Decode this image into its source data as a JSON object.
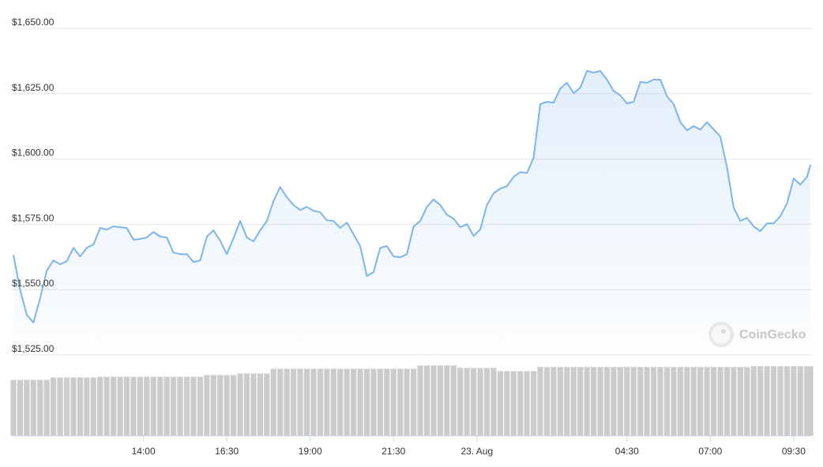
{
  "chart_data": {
    "type": "line",
    "watermark": "CoinGecko",
    "x": [
      10.1,
      10.3,
      10.5,
      10.7,
      10.9,
      11.1,
      11.3,
      11.5,
      11.7,
      11.9,
      12.1,
      12.3,
      12.5,
      12.7,
      12.9,
      13.1,
      13.3,
      13.5,
      13.7,
      13.9,
      14.1,
      14.3,
      14.5,
      14.7,
      14.9,
      15.1,
      15.3,
      15.5,
      15.7,
      15.9,
      16.1,
      16.3,
      16.5,
      16.7,
      16.9,
      17.1,
      17.3,
      17.5,
      17.7,
      17.9,
      18.1,
      18.3,
      18.5,
      18.7,
      18.9,
      19.1,
      19.3,
      19.5,
      19.7,
      19.9,
      20.1,
      20.3,
      20.5,
      20.7,
      20.9,
      21.1,
      21.3,
      21.5,
      21.7,
      21.9,
      22.1,
      22.3,
      22.5,
      22.7,
      22.9,
      23.1,
      23.3,
      23.5,
      23.7,
      23.9,
      24.1,
      24.3,
      24.5,
      24.7,
      24.9,
      25.1,
      25.3,
      25.5,
      25.7,
      25.9,
      26.1,
      26.3,
      26.5,
      26.7,
      26.9,
      27.1,
      27.3,
      27.5,
      27.7,
      27.9,
      28.1,
      28.3,
      28.5,
      28.7,
      28.9,
      29.1,
      29.3,
      29.5,
      29.7,
      29.9,
      30.1,
      30.3,
      30.5,
      30.7,
      30.9,
      31.1,
      31.3,
      31.5,
      31.7,
      31.9,
      32.1,
      32.3,
      32.5,
      32.7,
      32.9,
      33.1,
      33.3,
      33.5,
      33.7,
      33.9,
      34.0
    ],
    "series": [
      {
        "color": "#7cb5ec",
        "values": [
          1563.3,
          1550.0,
          1540.4,
          1537.4,
          1546.7,
          1557.3,
          1561.2,
          1559.7,
          1560.9,
          1566.0,
          1562.7,
          1566.0,
          1567.3,
          1573.6,
          1573.0,
          1574.2,
          1573.9,
          1573.6,
          1569.1,
          1569.4,
          1570.0,
          1572.1,
          1570.3,
          1570.0,
          1564.2,
          1563.6,
          1563.6,
          1560.6,
          1561.2,
          1570.3,
          1572.7,
          1568.8,
          1563.6,
          1569.7,
          1576.3,
          1570.0,
          1568.5,
          1572.7,
          1576.3,
          1583.9,
          1589.3,
          1585.4,
          1582.4,
          1580.5,
          1581.7,
          1580.2,
          1579.6,
          1576.6,
          1576.3,
          1573.6,
          1575.7,
          1571.2,
          1566.6,
          1555.2,
          1556.7,
          1566.0,
          1566.7,
          1562.7,
          1562.4,
          1563.6,
          1574.2,
          1576.3,
          1581.7,
          1584.5,
          1582.4,
          1578.7,
          1577.2,
          1573.9,
          1575.1,
          1570.6,
          1573.0,
          1582.4,
          1586.9,
          1588.7,
          1589.6,
          1593.2,
          1595.0,
          1594.7,
          1600.5,
          1621.0,
          1621.9,
          1621.6,
          1627.0,
          1629.2,
          1625.2,
          1627.3,
          1633.7,
          1633.1,
          1633.7,
          1630.4,
          1626.1,
          1624.3,
          1621.3,
          1621.9,
          1629.5,
          1629.2,
          1630.4,
          1630.4,
          1624.0,
          1621.0,
          1614.1,
          1611.0,
          1612.6,
          1611.3,
          1614.1,
          1611.3,
          1608.6,
          1596.8,
          1581.4,
          1576.3,
          1577.5,
          1574.2,
          1572.4,
          1575.4,
          1575.4,
          1578.1,
          1583.0,
          1592.6,
          1590.2,
          1593.2,
          1597.8
        ]
      }
    ],
    "volumes": [
      69,
      69,
      69,
      69,
      69,
      69,
      72,
      72,
      72,
      72,
      72,
      72,
      72,
      73,
      73,
      73,
      73,
      73,
      73,
      73,
      73,
      73,
      73,
      73,
      73,
      73,
      73,
      73,
      73,
      75,
      75,
      75,
      75,
      75,
      77,
      77,
      77,
      77,
      77,
      83,
      83,
      83,
      83,
      83,
      83,
      83,
      83,
      83,
      83,
      83,
      83,
      83,
      83,
      83,
      83,
      83,
      83,
      83,
      83,
      83,
      83,
      87,
      87,
      87,
      87,
      87,
      87,
      84,
      84,
      84,
      84,
      84,
      84,
      80,
      80,
      80,
      80,
      80,
      80,
      85,
      85,
      85,
      85,
      85,
      85,
      85,
      85,
      85,
      85,
      85,
      85,
      85,
      85,
      85,
      85,
      85,
      85,
      85,
      85,
      85,
      85,
      85,
      85,
      85,
      85,
      85,
      85,
      85,
      85,
      85,
      85,
      86,
      86,
      86,
      86,
      86,
      86,
      86,
      86,
      86,
      86
    ],
    "volume_color": "#cccccc",
    "volume_ylim": [
      0,
      100
    ],
    "xlim": [
      10.1,
      34.0
    ],
    "xticks": [
      {
        "value": 14,
        "label": "14:00"
      },
      {
        "value": 16.5,
        "label": "16:30"
      },
      {
        "value": 19,
        "label": "19:00"
      },
      {
        "value": 21.5,
        "label": "21:30"
      },
      {
        "value": 24,
        "label": "23. Aug"
      },
      {
        "value": 28.5,
        "label": "04:30"
      },
      {
        "value": 31,
        "label": "07:00"
      },
      {
        "value": 33.5,
        "label": "09:30"
      }
    ],
    "ylim": [
      1525,
      1650
    ],
    "yticks": [
      {
        "value": 1525,
        "label": "$1,525.00"
      },
      {
        "value": 1550,
        "label": "$1,550.00"
      },
      {
        "value": 1575,
        "label": "$1,575.00"
      },
      {
        "value": 1600,
        "label": "$1,600.00"
      },
      {
        "value": 1625,
        "label": "$1,625.00"
      },
      {
        "value": 1650,
        "label": "$1,650.00"
      }
    ],
    "grid": true
  }
}
